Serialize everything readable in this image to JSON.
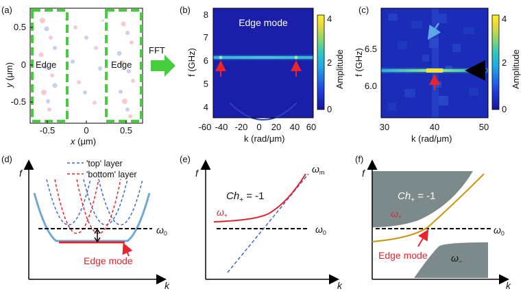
{
  "panels": {
    "a": {
      "label": "(a)",
      "ylabel_y": "y",
      "ylabel_unit": " (μm)",
      "xlabel_x": "x",
      "xlabel_unit": " (μm)",
      "yticks": [
        "0.5",
        "0",
        "-0.5"
      ],
      "xticks": [
        "-0.5",
        "0",
        "0.5"
      ],
      "edge_left": "Edge",
      "edge_right": "Edge"
    },
    "fft": {
      "label": "FFT"
    },
    "b": {
      "label": "(b)",
      "title": "Edge mode",
      "ylabel": "f (GHz)",
      "xlabel": "k (rad/μm)",
      "yticks": [
        "8",
        "7",
        "6",
        "5",
        "4"
      ],
      "xticks": [
        "-60",
        "-40",
        "-20",
        "0",
        "20",
        "40",
        "60"
      ],
      "colorbar_label": "Amplitude",
      "colorbar_ticks": [
        "4",
        "2",
        "0"
      ]
    },
    "c": {
      "label": "(c)",
      "ylabel": "f (GHz)",
      "xlabel": "k (rad/μm)",
      "yticks": [
        "6.5",
        "6.0"
      ],
      "xticks": [
        "30",
        "40",
        "50"
      ],
      "colorbar_label": "Amplitude",
      "colorbar_ticks": [
        "4",
        "2",
        "0"
      ]
    },
    "d": {
      "label": "(d)",
      "f": "f",
      "k": "k",
      "legend_top": "'top' layer",
      "legend_bottom": "'bottom' layer",
      "omega0": "ω",
      "omega0_sub": "0",
      "edge_mode": "Edge mode"
    },
    "e": {
      "label": "(e)",
      "f": "f",
      "k": "k",
      "chern": "Ch",
      "chern_sub": "+",
      "chern_val": " = -1",
      "omega_plus": "ω",
      "omega_plus_sub": "+",
      "omega_m": "ω",
      "omega_m_sub": "m",
      "omega0": "ω",
      "omega0_sub": "0"
    },
    "f": {
      "label": "(f)",
      "f": "f",
      "k": "k",
      "chern": "Ch",
      "chern_sub": "+",
      "chern_val": " = -1",
      "omega_plus": "ω",
      "omega_plus_sub": "+",
      "omega0": "ω",
      "omega0_sub": "0",
      "omega_minus": "ω",
      "omega_minus_sub": "−",
      "edge_mode": "Edge mode"
    }
  },
  "colors": {
    "green_dash": "#46cc3c",
    "arrow_red": "#e8242c",
    "blue_dash": "#3b66d6",
    "red_dash": "#e0262c",
    "solid_blue": "#6ba8d4",
    "gold": "#c9950c",
    "gray_region": "#7d8a8b",
    "light_blue_arrow": "#5fa8e6",
    "heat_bg": "#1a1ea8"
  }
}
